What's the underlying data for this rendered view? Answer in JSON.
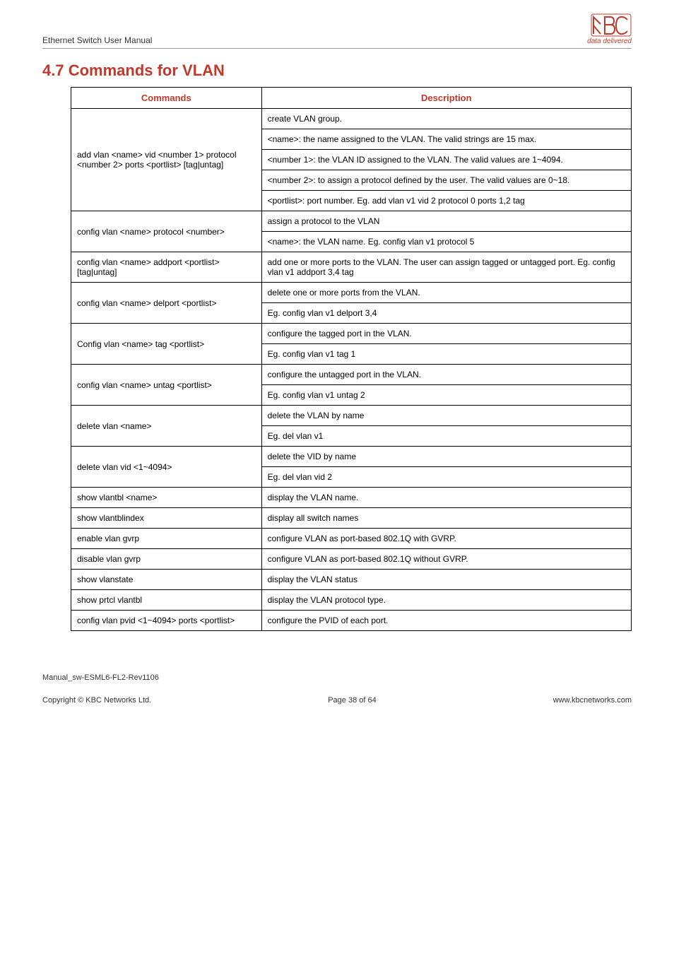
{
  "header": {
    "left": "Ethernet Switch User Manual",
    "tagline": "data delivered",
    "logo_color": "#c0392b"
  },
  "title": "4.7 Commands for VLAN",
  "table": {
    "head_commands": "Commands",
    "head_description": "Description",
    "rows": [
      {
        "cmd": "add vlan <name> vid <number 1> protocol <number 2> ports <portlist> [tag|untag]",
        "desc": [
          "create VLAN group.",
          "<name>: the name assigned to the VLAN. The valid strings are 15 max.",
          "<number 1>: the VLAN ID assigned to the VLAN. The valid values are 1~4094.",
          "<number 2>: to assign a protocol defined by the user. The valid values are 0~18.",
          "<portlist>: port number. Eg. add vlan v1 vid 2 protocol 0 ports 1,2 tag"
        ]
      },
      {
        "cmd": "config vlan <name> protocol <number>",
        "desc": [
          "assign a protocol to the VLAN",
          "<name>: the VLAN name.   Eg. config vlan v1 protocol 5"
        ]
      },
      {
        "cmd": "config vlan <name> addport <portlist> [tag|untag]",
        "desc": [
          "add one or more ports to the VLAN. The user can assign tagged or untagged port. Eg. config vlan v1 addport 3,4 tag"
        ]
      },
      {
        "cmd": "config vlan <name> delport <portlist>",
        "desc": [
          "delete one or more ports from the VLAN.",
          "Eg. config vlan v1 delport 3,4"
        ]
      },
      {
        "cmd": "Config vlan <name> tag <portlist>",
        "desc": [
          "configure the tagged port in the VLAN.",
          "Eg. config vlan v1 tag 1"
        ]
      },
      {
        "cmd": "config vlan <name> untag <portlist>",
        "desc": [
          "configure the untagged port in the VLAN.",
          "Eg. config vlan v1 untag 2"
        ]
      },
      {
        "cmd": "delete vlan <name>",
        "desc": [
          "delete the VLAN by name",
          "Eg. del vlan v1"
        ]
      },
      {
        "cmd": "delete vlan vid <1~4094>",
        "desc": [
          "delete the VID by name",
          "Eg. del vlan vid 2"
        ]
      },
      {
        "cmd": "show vlantbl <name>",
        "desc": [
          "display the VLAN name."
        ]
      },
      {
        "cmd": "show vlantblindex",
        "desc": [
          "display all switch names"
        ]
      },
      {
        "cmd": "enable vlan gvrp",
        "desc": [
          "configure VLAN as port-based 802.1Q with GVRP."
        ]
      },
      {
        "cmd": "disable vlan gvrp",
        "desc": [
          "configure VLAN as port-based 802.1Q without GVRP."
        ]
      },
      {
        "cmd": "show vlanstate",
        "desc": [
          "display the VLAN status"
        ]
      },
      {
        "cmd": "show prtcl vlantbl",
        "desc": [
          "display the VLAN protocol type."
        ]
      },
      {
        "cmd": "config vlan pvid <1~4094> ports <portlist>",
        "desc": [
          "configure the PVID of each port."
        ]
      }
    ]
  },
  "footer": {
    "manual_id": "Manual_sw-ESML6-FL2-Rev1106",
    "copyright": "Copyright © KBC Networks Ltd.",
    "page": "Page 38 of 64",
    "url": "www.kbcnetworks.com"
  }
}
